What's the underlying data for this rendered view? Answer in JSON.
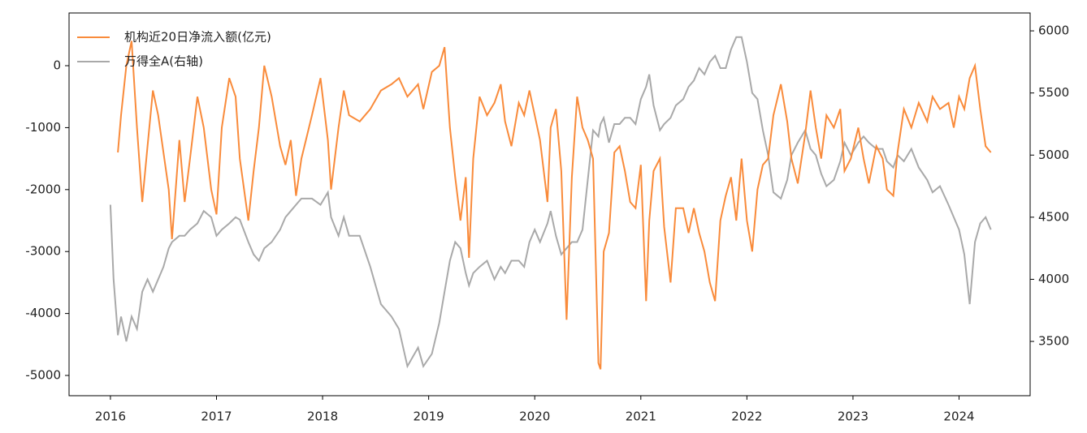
{
  "chart_data": {
    "type": "line",
    "x": [
      2016.0,
      2016.03,
      2016.07,
      2016.1,
      2016.15,
      2016.2,
      2016.25,
      2016.3,
      2016.35,
      2016.4,
      2016.45,
      2016.5,
      2016.55,
      2016.58,
      2016.65,
      2016.7,
      2016.75,
      2016.82,
      2016.88,
      2016.95,
      2017.0,
      2017.05,
      2017.12,
      2017.18,
      2017.22,
      2017.3,
      2017.35,
      2017.4,
      2017.45,
      2017.52,
      2017.6,
      2017.65,
      2017.7,
      2017.75,
      2017.8,
      2017.9,
      2017.98,
      2018.05,
      2018.08,
      2018.15,
      2018.2,
      2018.25,
      2018.35,
      2018.45,
      2018.55,
      2018.65,
      2018.72,
      2018.8,
      2018.9,
      2018.95,
      2019.03,
      2019.1,
      2019.15,
      2019.2,
      2019.25,
      2019.3,
      2019.35,
      2019.38,
      2019.42,
      2019.48,
      2019.55,
      2019.62,
      2019.68,
      2019.72,
      2019.78,
      2019.85,
      2019.9,
      2019.95,
      2020.0,
      2020.05,
      2020.12,
      2020.15,
      2020.2,
      2020.25,
      2020.3,
      2020.35,
      2020.4,
      2020.45,
      2020.5,
      2020.55,
      2020.6,
      2020.62,
      2020.65,
      2020.7,
      2020.75,
      2020.8,
      2020.85,
      2020.9,
      2020.95,
      2021.0,
      2021.05,
      2021.08,
      2021.12,
      2021.18,
      2021.22,
      2021.28,
      2021.33,
      2021.4,
      2021.45,
      2021.5,
      2021.55,
      2021.6,
      2021.65,
      2021.7,
      2021.75,
      2021.8,
      2021.85,
      2021.9,
      2021.95,
      2022.0,
      2022.05,
      2022.1,
      2022.15,
      2022.2,
      2022.25,
      2022.32,
      2022.38,
      2022.42,
      2022.48,
      2022.55,
      2022.6,
      2022.65,
      2022.7,
      2022.75,
      2022.82,
      2022.88,
      2022.92,
      2022.98,
      2023.05,
      2023.1,
      2023.15,
      2023.22,
      2023.28,
      2023.32,
      2023.38,
      2023.42,
      2023.48,
      2023.55,
      2023.62,
      2023.7,
      2023.75,
      2023.82,
      2023.9,
      2023.95,
      2024.0,
      2024.05,
      2024.1,
      2024.15,
      2024.2,
      2024.25,
      2024.3
    ],
    "series": [
      {
        "name": "机构近20日净流入额(亿元)",
        "color": "#f98b3b",
        "values": [
          null,
          null,
          -1400,
          -800,
          0,
          400,
          -1000,
          -2200,
          -1300,
          -400,
          -800,
          -1400,
          -2000,
          -2800,
          -1200,
          -2200,
          -1500,
          -500,
          -1000,
          -2000,
          -2400,
          -1000,
          -200,
          -500,
          -1500,
          -2500,
          -1700,
          -1000,
          0,
          -500,
          -1300,
          -1600,
          -1200,
          -2100,
          -1500,
          -800,
          -200,
          -1200,
          -2000,
          -1000,
          -400,
          -800,
          -900,
          -700,
          -400,
          -300,
          -200,
          -500,
          -300,
          -700,
          -100,
          0,
          300,
          -1000,
          -1800,
          -2500,
          -1800,
          -3100,
          -1500,
          -500,
          -800,
          -600,
          -300,
          -900,
          -1300,
          -600,
          -800,
          -400,
          -800,
          -1200,
          -2200,
          -1000,
          -700,
          -1700,
          -4100,
          -1800,
          -500,
          -1000,
          -1200,
          -1500,
          -4800,
          -4900,
          -3000,
          -2700,
          -1400,
          -1300,
          -1700,
          -2200,
          -2300,
          -1600,
          -3800,
          -2500,
          -1700,
          -1500,
          -2600,
          -3500,
          -2300,
          -2300,
          -2700,
          -2300,
          -2700,
          -3000,
          -3500,
          -3800,
          -2500,
          -2100,
          -1800,
          -2500,
          -1500,
          -2500,
          -3000,
          -2000,
          -1600,
          -1500,
          -800,
          -300,
          -900,
          -1500,
          -1900,
          -1100,
          -400,
          -1000,
          -1500,
          -800,
          -1000,
          -700,
          -1700,
          -1500,
          -1000,
          -1500,
          -1900,
          -1300,
          -1500,
          -2000,
          -2100,
          -1400,
          -700,
          -1000,
          -600,
          -900,
          -500,
          -700,
          -600,
          -1000,
          -500,
          -700,
          -200,
          0,
          -700,
          -1300,
          -1400
        ]
      },
      {
        "name": "万得全A(右轴)",
        "color": "#a9a9a9",
        "axis": "y2",
        "values": [
          4600,
          4000,
          3550,
          3700,
          3500,
          3700,
          3600,
          3900,
          4000,
          3900,
          4000,
          4100,
          4250,
          4300,
          4350,
          4350,
          4400,
          4450,
          4550,
          4500,
          4350,
          4400,
          4450,
          4500,
          4480,
          4300,
          4200,
          4150,
          4250,
          4300,
          4400,
          4500,
          4550,
          4600,
          4650,
          4650,
          4600,
          4700,
          4500,
          4350,
          4500,
          4350,
          4350,
          4100,
          3800,
          3700,
          3600,
          3300,
          3450,
          3300,
          3400,
          3650,
          3900,
          4150,
          4300,
          4250,
          4050,
          3950,
          4050,
          4100,
          4150,
          4000,
          4100,
          4050,
          4150,
          4150,
          4100,
          4300,
          4400,
          4300,
          4450,
          4550,
          4350,
          4200,
          4250,
          4300,
          4300,
          4400,
          4800,
          5200,
          5150,
          5250,
          5300,
          5100,
          5250,
          5250,
          5300,
          5300,
          5250,
          5450,
          5550,
          5650,
          5400,
          5200,
          5250,
          5300,
          5400,
          5450,
          5550,
          5600,
          5700,
          5650,
          5750,
          5800,
          5700,
          5700,
          5850,
          5950,
          5950,
          5750,
          5500,
          5450,
          5200,
          5000,
          4700,
          4650,
          4800,
          5000,
          5100,
          5200,
          5050,
          5000,
          4850,
          4750,
          4800,
          4950,
          5100,
          5000,
          5100,
          5150,
          5100,
          5050,
          5050,
          4950,
          4900,
          5000,
          4950,
          5050,
          4900,
          4800,
          4700,
          4750,
          4600,
          4500,
          4400,
          4200,
          3800,
          4300,
          4450,
          4500,
          4400
        ]
      }
    ],
    "xlim": [
      2015.61,
      2024.67
    ],
    "xticks": [
      2016,
      2017,
      2018,
      2019,
      2020,
      2021,
      2022,
      2023,
      2024
    ],
    "ylim": [
      -5327,
      851
    ],
    "yticks": [
      0,
      -1000,
      -2000,
      -3000,
      -4000,
      -5000
    ],
    "y2lim": [
      3063,
      6144
    ],
    "y2ticks": [
      3500,
      4000,
      4500,
      5000,
      5500,
      6000
    ],
    "legend": "upper left",
    "grid": false
  }
}
